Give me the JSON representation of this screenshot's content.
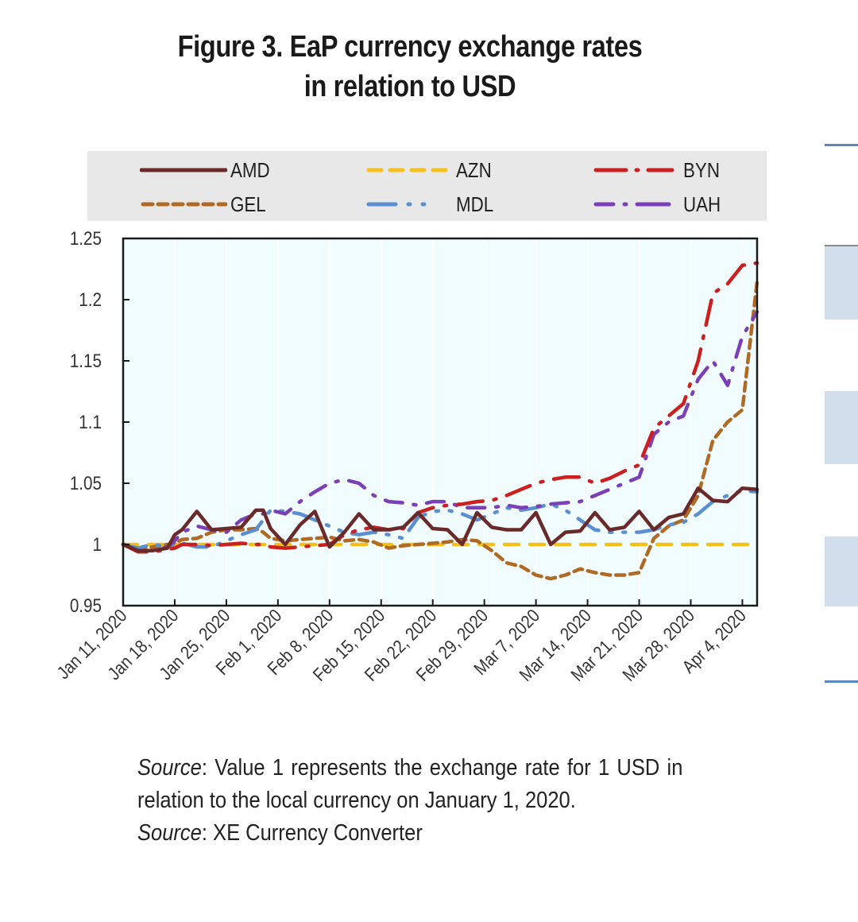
{
  "figure": {
    "title_line1": "Figure 3. EaP currency exchange rates",
    "title_line2": "in relation to USD",
    "note_label": "Source",
    "note_text": ": Value 1 represents the exchange rate for 1 USD in relation to the local currency on January 1, 2020.",
    "source_label": "Source",
    "source_text": ": XE Currency Converter"
  },
  "legend": [
    {
      "name": "AMD",
      "color": "#6b2a2a",
      "dash": "solid"
    },
    {
      "name": "AZN",
      "color": "#f5c01a",
      "dash": "dash"
    },
    {
      "name": "BYN",
      "color": "#cc1f1f",
      "dash": "dashdot"
    },
    {
      "name": "GEL",
      "color": "#b06a24",
      "dash": "shortdash"
    },
    {
      "name": "MDL",
      "color": "#5b8fd0",
      "dash": "longdot"
    },
    {
      "name": "UAH",
      "color": "#7b3fb8",
      "dash": "dashdot"
    }
  ],
  "chart_data": {
    "type": "line",
    "title": "Figure 3. EaP currency exchange rates in relation to USD",
    "xlabel": "",
    "ylabel": "",
    "ylim": [
      0.95,
      1.25
    ],
    "yticks": [
      "0.95",
      "1",
      "1.05",
      "1.1",
      "1.15",
      "1.2",
      "1.25"
    ],
    "ytick_values": [
      0.95,
      1.0,
      1.05,
      1.1,
      1.15,
      1.2,
      1.25
    ],
    "xlim_days": [
      0,
      86
    ],
    "xtick_labels": [
      "Jan 11, 2020",
      "Jan 18, 2020",
      "Jan 25, 2020",
      "Feb 1, 2020",
      "Feb 8, 2020",
      "Feb 15, 2020",
      "Feb 22, 2020",
      "Feb 29, 2020",
      "Mar 7, 2020",
      "Mar 14, 2020",
      "Mar 21, 2020",
      "Mar 28, 2020",
      "Apr 4, 2020"
    ],
    "xtick_days": [
      0,
      7,
      14,
      21,
      28,
      35,
      42,
      49,
      56,
      63,
      70,
      77,
      84
    ],
    "grid": "vertical",
    "legend_position": "top",
    "x_days": [
      0,
      2,
      4,
      6,
      7,
      8,
      10,
      12,
      14,
      16,
      18,
      19,
      20,
      22,
      24,
      26,
      28,
      30,
      32,
      34,
      36,
      38,
      40,
      42,
      44,
      46,
      48,
      50,
      52,
      54,
      56,
      58,
      60,
      62,
      64,
      66,
      68,
      70,
      72,
      74,
      76,
      78,
      80,
      82,
      84,
      86
    ],
    "series": [
      {
        "name": "AMD",
        "values": [
          1.0,
          0.995,
          0.995,
          0.997,
          1.008,
          1.012,
          1.027,
          1.012,
          1.013,
          1.014,
          1.028,
          1.028,
          1.013,
          1.0,
          1.016,
          1.027,
          0.998,
          1.01,
          1.025,
          1.012,
          1.012,
          1.014,
          1.026,
          1.013,
          1.012,
          1.0,
          1.026,
          1.014,
          1.012,
          1.012,
          1.026,
          1.0,
          1.01,
          1.011,
          1.026,
          1.012,
          1.014,
          1.027,
          1.012,
          1.022,
          1.025,
          1.046,
          1.036,
          1.035,
          1.046,
          1.045
        ]
      },
      {
        "name": "AZN",
        "values": [
          1.0,
          1.0,
          1.0,
          1.0,
          1.0,
          1.0,
          1.0,
          1.0,
          1.0,
          1.0,
          1.0,
          1.0,
          1.0,
          1.0,
          1.0,
          1.0,
          1.0,
          1.0,
          1.0,
          1.0,
          1.0,
          1.0,
          1.0,
          1.0,
          1.0,
          1.0,
          1.0,
          1.0,
          1.0,
          1.0,
          1.0,
          1.0,
          1.0,
          1.0,
          1.0,
          1.0,
          1.0,
          1.0,
          1.0,
          1.0,
          1.0,
          1.0,
          1.0,
          1.0,
          1.0,
          1.0
        ]
      },
      {
        "name": "BYN",
        "values": [
          1.0,
          0.994,
          0.994,
          0.996,
          0.997,
          1.0,
          1.0,
          0.999,
          1.0,
          1.001,
          1.0,
          1.0,
          0.998,
          0.997,
          0.998,
          0.999,
          1.0,
          1.008,
          1.012,
          1.014,
          1.012,
          1.013,
          1.026,
          1.03,
          1.032,
          1.033,
          1.035,
          1.036,
          1.04,
          1.045,
          1.05,
          1.053,
          1.055,
          1.055,
          1.05,
          1.054,
          1.06,
          1.065,
          1.095,
          1.105,
          1.115,
          1.15,
          1.205,
          1.213,
          1.228,
          1.23
        ]
      },
      {
        "name": "GEL",
        "values": [
          1.0,
          0.997,
          0.998,
          1.0,
          1.001,
          1.004,
          1.005,
          1.01,
          1.012,
          1.012,
          1.013,
          1.01,
          1.005,
          1.003,
          1.004,
          1.005,
          1.006,
          1.003,
          1.004,
          1.002,
          0.997,
          0.999,
          1.0,
          1.001,
          1.002,
          1.004,
          1.003,
          0.995,
          0.985,
          0.982,
          0.975,
          0.972,
          0.975,
          0.98,
          0.977,
          0.975,
          0.975,
          0.977,
          1.005,
          1.015,
          1.02,
          1.04,
          1.085,
          1.1,
          1.11,
          1.215
        ]
      },
      {
        "name": "MDL",
        "values": [
          1.0,
          0.997,
          1.0,
          0.998,
          1.0,
          1.001,
          0.998,
          0.998,
          1.003,
          1.008,
          1.012,
          1.02,
          1.028,
          1.027,
          1.025,
          1.02,
          1.015,
          1.01,
          1.008,
          1.01,
          1.008,
          1.005,
          1.022,
          1.027,
          1.028,
          1.025,
          1.02,
          1.025,
          1.03,
          1.028,
          1.03,
          1.033,
          1.028,
          1.02,
          1.012,
          1.01,
          1.01,
          1.01,
          1.012,
          1.016,
          1.018,
          1.025,
          1.035,
          1.04,
          1.044,
          1.043
        ]
      },
      {
        "name": "UAH",
        "values": [
          1.0,
          0.995,
          0.995,
          0.998,
          1.003,
          1.01,
          1.015,
          1.012,
          1.01,
          1.02,
          1.025,
          1.025,
          1.028,
          1.025,
          1.035,
          1.043,
          1.05,
          1.053,
          1.05,
          1.04,
          1.035,
          1.034,
          1.032,
          1.035,
          1.035,
          1.03,
          1.03,
          1.03,
          1.032,
          1.03,
          1.031,
          1.033,
          1.034,
          1.035,
          1.04,
          1.045,
          1.05,
          1.055,
          1.09,
          1.1,
          1.105,
          1.135,
          1.15,
          1.13,
          1.17,
          1.19
        ]
      }
    ]
  },
  "side_panel": {
    "items": [
      "line",
      "box",
      "box",
      "box",
      "line"
    ]
  }
}
